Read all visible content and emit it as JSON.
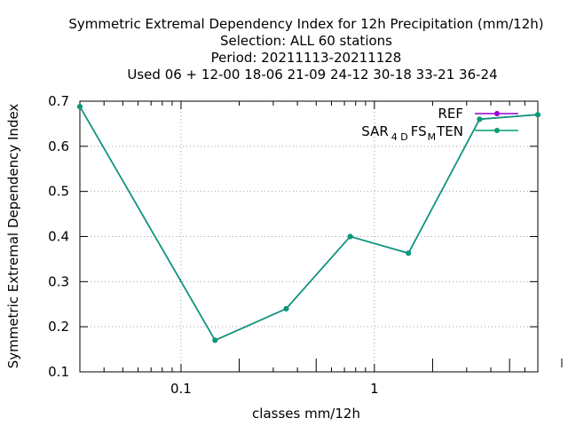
{
  "chart_data": {
    "type": "line",
    "title_lines": [
      "Symmetric Extremal Dependency Index  for 12h Precipitation (mm/12h)",
      "Selection: ALL     60 stations",
      "Period: 20211113-20211128",
      "Used  06 + 12-00 18-06 21-09 24-12 30-18 33-21 36-24"
    ],
    "xlabel": "classes mm/12h",
    "ylabel": "Symmetric Extremal Dependency Index",
    "x_scale": "log",
    "xlim": [
      0.03,
      7.0
    ],
    "ylim": [
      0.1,
      0.7
    ],
    "x_tick_labels": [
      {
        "value": 0.1,
        "label": "0.1"
      },
      {
        "value": 1,
        "label": "1"
      }
    ],
    "y_ticks": [
      0.1,
      0.2,
      0.3,
      0.4,
      0.5,
      0.6,
      0.7
    ],
    "y_tick_labels": [
      "0.1",
      "0.2",
      "0.3",
      "0.4",
      "0.5",
      "0.6",
      "0.7"
    ],
    "grid": true,
    "legend_position": "top-right",
    "x": [
      0.03,
      0.15,
      0.35,
      0.75,
      1.5,
      3.5,
      7.0
    ],
    "series": [
      {
        "name": "REF",
        "color": "#9400d3",
        "values": [
          0.688,
          0.17,
          0.24,
          0.4,
          0.363,
          0.66,
          0.67
        ]
      },
      {
        "name": "SAR_4D FS_M TEN",
        "name_parts": {
          "main": "SAR",
          "sub1": "4 D",
          "mid": "FS",
          "sub2": "M",
          "end": "TEN"
        },
        "color": "#009e73",
        "values": [
          0.688,
          0.17,
          0.24,
          0.4,
          0.363,
          0.66,
          0.67
        ]
      }
    ]
  }
}
